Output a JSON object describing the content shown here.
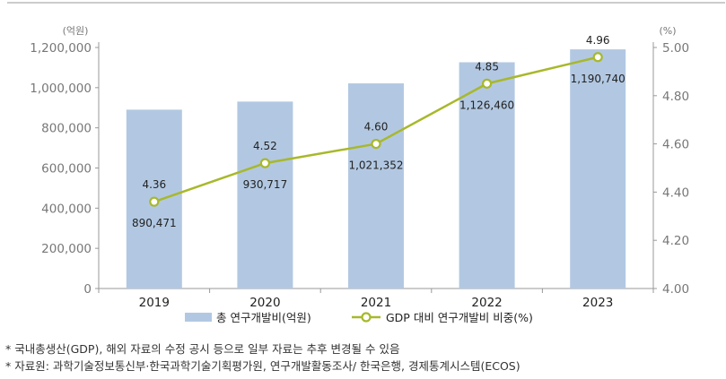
{
  "chart_data": {
    "type": "bar+line",
    "categories": [
      "2019",
      "2020",
      "2021",
      "2022",
      "2023"
    ],
    "series": [
      {
        "name": "총 연구개발비(억원)",
        "type": "bar",
        "axis": "left",
        "values": [
          890471,
          930717,
          1021352,
          1126460,
          1190740
        ],
        "labels": [
          "890,471",
          "930,717",
          "1,021,352",
          "1,126,460",
          "1,190,740"
        ],
        "color": "#b2c8e2"
      },
      {
        "name": "GDP 대비 연구개발비 비중(%)",
        "type": "line",
        "axis": "right",
        "values": [
          4.36,
          4.52,
          4.6,
          4.85,
          4.96
        ],
        "labels": [
          "4.36",
          "4.52",
          "4.60",
          "4.85",
          "4.96"
        ],
        "color": "#a8b82a"
      }
    ],
    "y_left": {
      "unit": "(억원)",
      "range": [
        0,
        1200000
      ],
      "ticks": [
        "0",
        "200,000",
        "400,000",
        "600,000",
        "800,000",
        "1,000,000",
        "1,200,000"
      ]
    },
    "y_right": {
      "unit": "(%)",
      "range": [
        4.0,
        5.0
      ],
      "ticks": [
        "4.00",
        "4.20",
        "4.40",
        "4.60",
        "4.80",
        "5.00"
      ]
    },
    "grid": false,
    "legend_position": "bottom"
  },
  "notes": [
    "*  국내총생산(GDP), 해외 자료의 수정 공시 등으로 일부 자료는 추후 변경될 수 있음",
    "*  자료원: 과학기술정보통신부·한국과학기술기획평가원, 연구개발활동조사/  한국은행, 경제통계시스템(ECOS)"
  ]
}
